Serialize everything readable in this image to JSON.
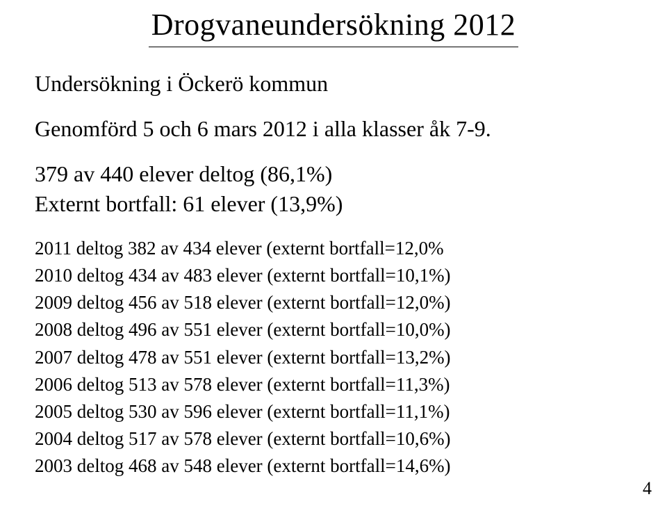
{
  "title": "Drogvaneundersökning 2012",
  "subtitle": "Undersökning i Öckerö kommun",
  "conducted_line": "Genomförd 5 och 6 mars 2012 i alla klasser åk 7-9.",
  "participation_line": "379 av 440 elever deltog (86,1%)",
  "external_dropout_line": "Externt bortfall: 61 elever (13,9%)",
  "history": [
    "2011 deltog 382 av 434 elever (externt bortfall=12,0%",
    "2010 deltog 434 av 483 elever (externt bortfall=10,1%)",
    "2009 deltog 456 av 518 elever (externt bortfall=12,0%)",
    "2008 deltog 496 av 551 elever (externt bortfall=10,0%)",
    "2007 deltog 478 av 551 elever (externt bortfall=13,2%)",
    "2006 deltog 513 av 578 elever (externt bortfall=11,3%)",
    "2005 deltog 530 av 596 elever (externt bortfall=11,1%)",
    "2004 deltog 517 av 578 elever (externt bortfall=10,6%)",
    "2003 deltog 468 av 548 elever (externt bortfall=14,6%)"
  ],
  "page_number": "4"
}
